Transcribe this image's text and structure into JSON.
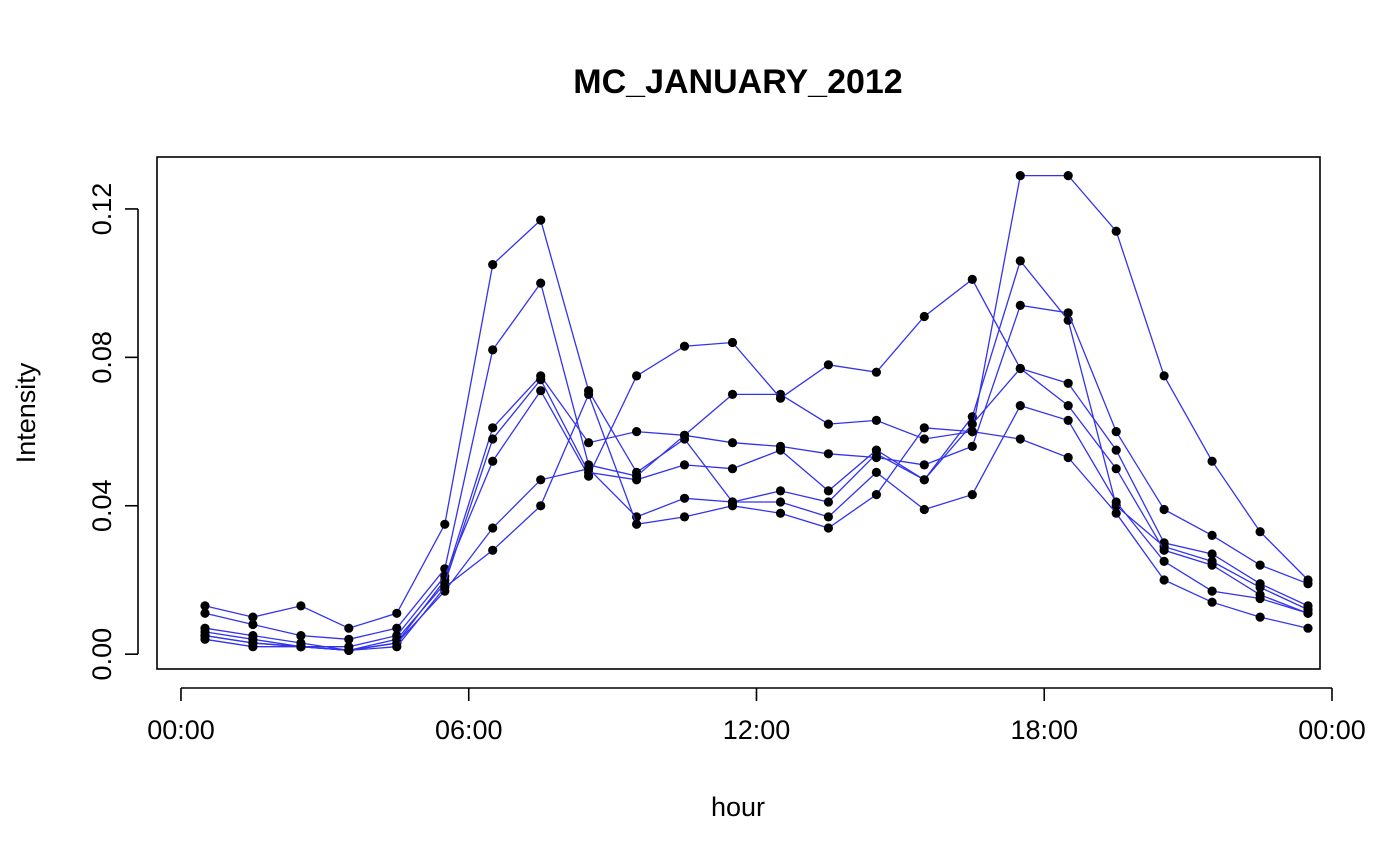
{
  "chart_data": {
    "type": "line",
    "title": "MC_JANUARY_2012",
    "xlabel": "hour",
    "ylabel": "Intensity",
    "xlim": [
      -0.5,
      23.75
    ],
    "ylim": [
      -0.004,
      0.134
    ],
    "x_ticks": [
      {
        "value": 0,
        "label": "00:00"
      },
      {
        "value": 6,
        "label": "06:00"
      },
      {
        "value": 12,
        "label": "12:00"
      },
      {
        "value": 18,
        "label": "18:00"
      },
      {
        "value": 24,
        "label": "00:00"
      }
    ],
    "y_ticks": [
      {
        "value": 0.0,
        "label": "0.00"
      },
      {
        "value": 0.04,
        "label": "0.04"
      },
      {
        "value": 0.08,
        "label": "0.08"
      },
      {
        "value": 0.12,
        "label": "0.12"
      }
    ],
    "x": [
      0.5,
      1.5,
      2.5,
      3.5,
      4.5,
      5.5,
      6.5,
      7.5,
      8.5,
      9.5,
      10.5,
      11.5,
      12.5,
      13.5,
      14.5,
      15.5,
      16.5,
      17.5,
      18.5,
      19.5,
      20.5,
      21.5,
      22.5,
      23.5
    ],
    "line_color": "#3333ee",
    "point_color": "#000000",
    "series": [
      {
        "values": [
          0.013,
          0.01,
          0.013,
          0.007,
          0.011,
          0.035,
          0.105,
          0.117,
          0.071,
          0.049,
          0.058,
          0.041,
          0.044,
          0.041,
          0.054,
          0.047,
          0.064,
          0.106,
          0.09,
          0.04,
          0.029,
          0.025,
          0.018,
          0.012
        ]
      },
      {
        "values": [
          0.011,
          0.008,
          0.005,
          0.004,
          0.007,
          0.023,
          0.082,
          0.1,
          0.051,
          0.048,
          0.059,
          0.057,
          0.056,
          0.054,
          0.053,
          0.051,
          0.056,
          0.094,
          0.092,
          0.06,
          0.039,
          0.032,
          0.024,
          0.019
        ]
      },
      {
        "values": [
          0.007,
          0.005,
          0.003,
          0.001,
          0.003,
          0.02,
          0.061,
          0.075,
          0.057,
          0.06,
          0.059,
          0.07,
          0.07,
          0.062,
          0.063,
          0.058,
          0.06,
          0.129,
          0.129,
          0.114,
          0.075,
          0.052,
          0.033,
          0.02
        ]
      },
      {
        "values": [
          0.006,
          0.004,
          0.002,
          0.002,
          0.005,
          0.021,
          0.052,
          0.071,
          0.048,
          0.075,
          0.083,
          0.084,
          0.069,
          0.078,
          0.076,
          0.091,
          0.101,
          0.077,
          0.073,
          0.055,
          0.03,
          0.027,
          0.019,
          0.013
        ]
      },
      {
        "values": [
          0.005,
          0.003,
          0.002,
          0.001,
          0.004,
          0.019,
          0.058,
          0.074,
          0.049,
          0.047,
          0.051,
          0.05,
          0.055,
          0.044,
          0.055,
          0.047,
          0.062,
          0.077,
          0.067,
          0.05,
          0.028,
          0.024,
          0.016,
          0.011
        ]
      },
      {
        "values": [
          0.005,
          0.003,
          0.002,
          0.001,
          0.003,
          0.017,
          0.034,
          0.047,
          0.05,
          0.037,
          0.042,
          0.041,
          0.041,
          0.037,
          0.049,
          0.039,
          0.043,
          0.067,
          0.063,
          0.041,
          0.025,
          0.017,
          0.015,
          0.011
        ]
      },
      {
        "values": [
          0.004,
          0.002,
          0.002,
          0.001,
          0.002,
          0.018,
          0.028,
          0.04,
          0.07,
          0.035,
          0.037,
          0.04,
          0.038,
          0.034,
          0.043,
          0.061,
          0.06,
          0.058,
          0.053,
          0.038,
          0.02,
          0.014,
          0.01,
          0.007
        ]
      }
    ]
  }
}
